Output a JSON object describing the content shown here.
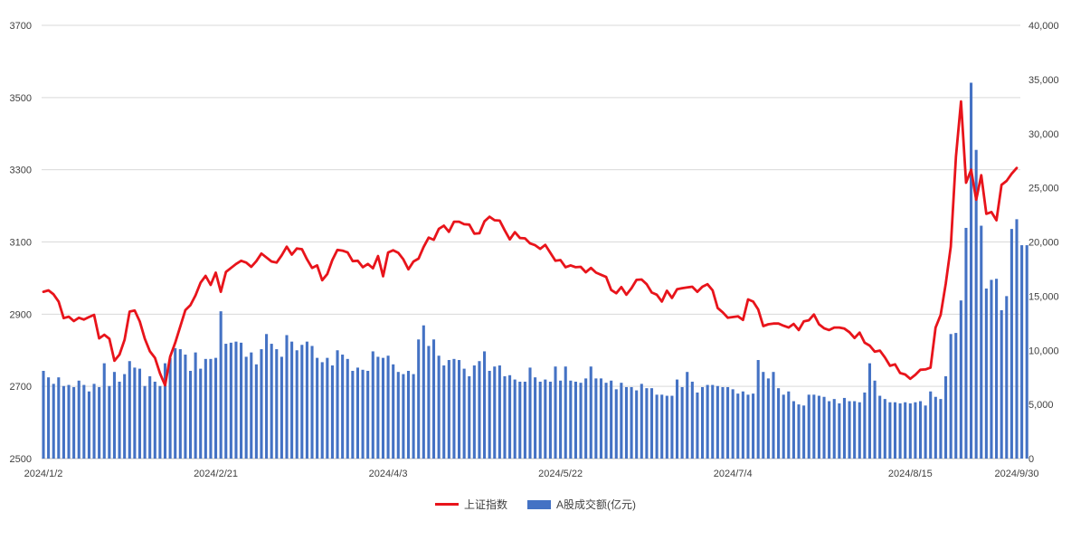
{
  "chart_data": {
    "type": "bar",
    "title": "",
    "x_tick_labels": [
      "2024/1/2",
      "2024/2/21",
      "2024/4/3",
      "2024/5/22",
      "2024/7/4",
      "2024/8/15",
      "2024/9/30"
    ],
    "y_left": {
      "ylim": [
        2500,
        3700
      ],
      "ticks": [
        "2500",
        "2700",
        "2900",
        "3100",
        "3300",
        "3500",
        "3700"
      ]
    },
    "y_right": {
      "ylim": [
        0,
        40000
      ],
      "ticks": [
        "0",
        "5,000",
        "10,000",
        "15,000",
        "20,000",
        "25,000",
        "30,000",
        "35,000",
        "40,000"
      ]
    },
    "grid": true,
    "legend_position": "bottom",
    "series": [
      {
        "name": "上证指数",
        "type": "line",
        "axis": "left",
        "color": "#e8141b",
        "values": [
          2962,
          2966,
          2955,
          2935,
          2889,
          2893,
          2881,
          2890,
          2885,
          2892,
          2898,
          2833,
          2843,
          2832,
          2771,
          2788,
          2829,
          2907,
          2910,
          2880,
          2832,
          2797,
          2779,
          2736,
          2703,
          2782,
          2821,
          2866,
          2911,
          2925,
          2952,
          2987,
          3006,
          2981,
          3015,
          2962,
          3017,
          3028,
          3039,
          3048,
          3043,
          3031,
          3047,
          3068,
          3057,
          3046,
          3043,
          3063,
          3087,
          3065,
          3082,
          3080,
          3052,
          3028,
          3035,
          2994,
          3011,
          3050,
          3078,
          3076,
          3071,
          3047,
          3048,
          3030,
          3039,
          3027,
          3061,
          3005,
          3071,
          3077,
          3070,
          3052,
          3024,
          3046,
          3054,
          3086,
          3112,
          3106,
          3136,
          3145,
          3128,
          3156,
          3156,
          3149,
          3148,
          3123,
          3124,
          3157,
          3170,
          3160,
          3159,
          3132,
          3107,
          3127,
          3111,
          3110,
          3096,
          3091,
          3081,
          3092,
          3070,
          3048,
          3050,
          3030,
          3035,
          3030,
          3031,
          3016,
          3028,
          3015,
          3009,
          3003,
          2967,
          2958,
          2975,
          2954,
          2972,
          2995,
          2996,
          2983,
          2960,
          2954,
          2935,
          2965,
          2945,
          2969,
          2972,
          2974,
          2976,
          2962,
          2976,
          2983,
          2966,
          2917,
          2905,
          2890,
          2892,
          2894,
          2884,
          2941,
          2935,
          2913,
          2867,
          2872,
          2874,
          2874,
          2868,
          2863,
          2873,
          2856,
          2880,
          2883,
          2899,
          2872,
          2861,
          2856,
          2863,
          2863,
          2860,
          2850,
          2834,
          2849,
          2821,
          2813,
          2796,
          2799,
          2780,
          2757,
          2761,
          2737,
          2733,
          2721,
          2732,
          2746,
          2747,
          2752,
          2863,
          2898,
          2984,
          3087,
          3336,
          3489,
          3264,
          3300,
          3217,
          3285,
          3178,
          3183,
          3160,
          3258,
          3269,
          3289,
          3305
        ]
      },
      {
        "name": "A股成交额(亿元)",
        "type": "bar",
        "axis": "right",
        "color": "#4472c4",
        "values": [
          8100,
          7500,
          6900,
          7500,
          6700,
          6800,
          6600,
          7200,
          6800,
          6200,
          6900,
          6600,
          8800,
          6700,
          8000,
          7100,
          7800,
          9000,
          8400,
          8300,
          6700,
          7600,
          7100,
          6700,
          8800,
          9300,
          10200,
          10100,
          9600,
          8100,
          9800,
          8300,
          9200,
          9200,
          9300,
          13600,
          10600,
          10700,
          10800,
          10700,
          9400,
          9800,
          8700,
          10100,
          11500,
          10600,
          10100,
          9400,
          11400,
          10800,
          10000,
          10500,
          10800,
          10400,
          9300,
          8900,
          9300,
          8600,
          10000,
          9600,
          9200,
          8100,
          8400,
          8200,
          8100,
          9900,
          9400,
          9300,
          9500,
          8700,
          8000,
          7800,
          8100,
          7800,
          11000,
          12300,
          10400,
          11000,
          9500,
          8600,
          9100,
          9200,
          9100,
          8300,
          7600,
          8600,
          9000,
          9900,
          8100,
          8500,
          8600,
          7600,
          7700,
          7300,
          7100,
          7100,
          8400,
          7500,
          7100,
          7300,
          7100,
          8500,
          7200,
          8500,
          7200,
          7100,
          7000,
          7400,
          8500,
          7400,
          7400,
          7000,
          7200,
          6400,
          7000,
          6600,
          6600,
          6300,
          6900,
          6500,
          6500,
          5900,
          5900,
          5800,
          5800,
          7300,
          6600,
          8000,
          7100,
          6100,
          6600,
          6800,
          6800,
          6700,
          6600,
          6600,
          6400,
          6000,
          6200,
          5900,
          6000,
          9100,
          8000,
          7400,
          8000,
          6500,
          5900,
          6200,
          5300,
          5000,
          4900,
          5900,
          5900,
          5800,
          5700,
          5300,
          5500,
          5100,
          5600,
          5300,
          5300,
          5200,
          6100,
          8800,
          7200,
          5800,
          5500,
          5200,
          5200,
          5100,
          5200,
          5100,
          5200,
          5300,
          4900,
          6200,
          5700,
          5500,
          7600,
          11500,
          11600,
          14600,
          21300,
          34700,
          28500,
          21500,
          15700,
          16500,
          16600,
          13700,
          15000,
          21200,
          22100,
          19700,
          19700
        ]
      }
    ]
  }
}
